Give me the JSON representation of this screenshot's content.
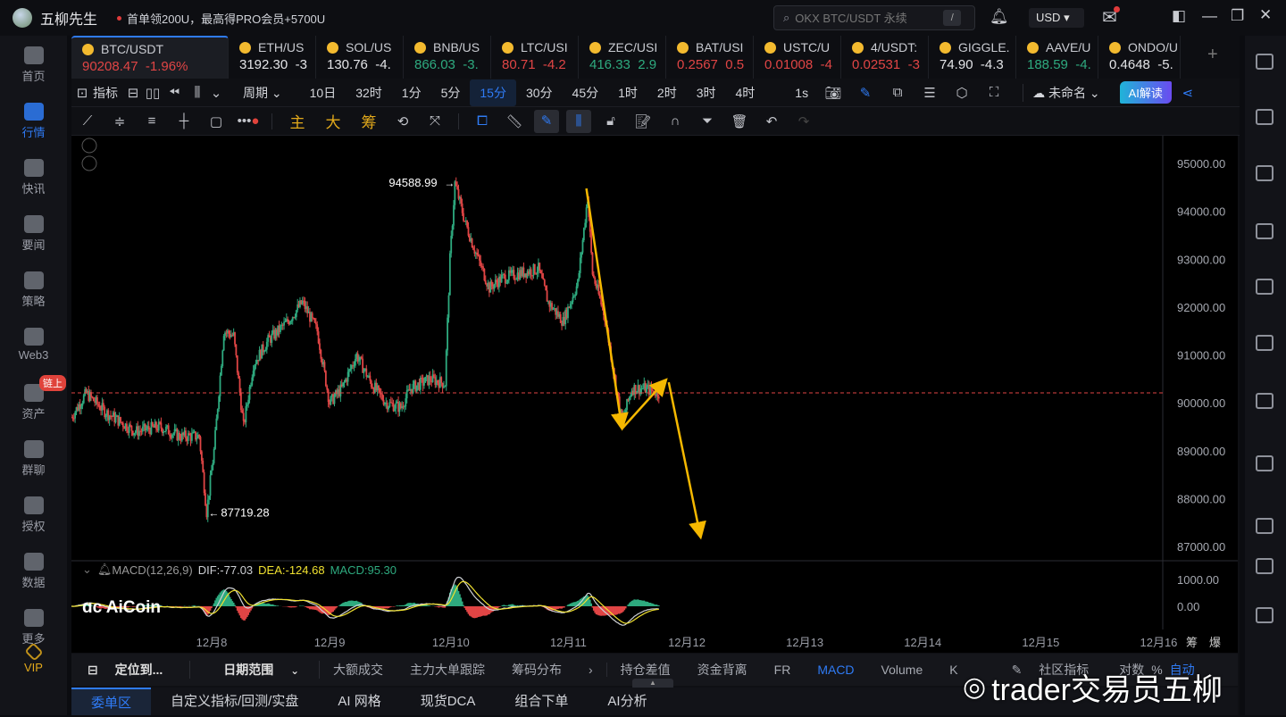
{
  "app": {
    "name": "五柳先生",
    "promo": "首单领200U，最高得PRO会员+5700U",
    "search_placeholder": "OKX BTC/USDT 永续",
    "search_key": "/",
    "currency": "USD"
  },
  "sidebar": {
    "items": [
      {
        "label": "首页"
      },
      {
        "label": "行情",
        "active": true
      },
      {
        "label": "快讯"
      },
      {
        "label": "要闻"
      },
      {
        "label": "策略"
      },
      {
        "label": "Web3"
      },
      {
        "label": "资产",
        "badge": "链上"
      },
      {
        "label": "群聊"
      },
      {
        "label": "授权"
      },
      {
        "label": "数据"
      },
      {
        "label": "更多"
      },
      {
        "label": "VIP"
      }
    ]
  },
  "colors": {
    "up": "#2eaa7f",
    "down": "#e04545",
    "accent": "#2f7bf5",
    "annotation": "#f5b800",
    "dif": "#cfd1d6",
    "dea": "#f0e130"
  },
  "tickers": [
    {
      "symbol": "BTC/USDT",
      "price": "90208.47",
      "change": "-1.96%",
      "color": "down",
      "active": true
    },
    {
      "symbol": "ETH/US",
      "price": "3192.30",
      "change": "-3",
      "color": "neutral"
    },
    {
      "symbol": "SOL/US",
      "price": "130.76",
      "change": "-4.",
      "color": "neutral"
    },
    {
      "symbol": "BNB/US",
      "price": "866.03",
      "change": "-3.",
      "color": "up"
    },
    {
      "symbol": "LTC/USI",
      "price": "80.71",
      "change": "-4.2",
      "color": "down"
    },
    {
      "symbol": "ZEC/USI",
      "price": "416.33",
      "change": "2.9",
      "color": "up"
    },
    {
      "symbol": "BAT/USI",
      "price": "0.2567",
      "change": "0.5",
      "color": "down"
    },
    {
      "symbol": "USTC/U",
      "price": "0.01008",
      "change": "-4",
      "color": "down"
    },
    {
      "symbol": "4/USDT:",
      "price": "0.02531",
      "change": "-3",
      "color": "down"
    },
    {
      "symbol": "GIGGLE.",
      "price": "74.90",
      "change": "-4.3",
      "color": "neutral"
    },
    {
      "symbol": "AAVE/U",
      "price": "188.59",
      "change": "-4.",
      "color": "up"
    },
    {
      "symbol": "ONDO/U",
      "price": "0.4648",
      "change": "-5.",
      "color": "neutral"
    }
  ],
  "toolbar": {
    "indicators": "指标",
    "period": "周期",
    "periods": [
      "10日",
      "32时",
      "1分",
      "5分",
      "15分",
      "30分",
      "45分",
      "1时",
      "2时",
      "3时",
      "4时"
    ],
    "active_period": "15分",
    "seconds": "1s",
    "layout_name": "未命名",
    "ai_button": "AI解读",
    "main_labels": [
      "主",
      "大",
      "筹"
    ]
  },
  "chart_data": {
    "type": "candlestick",
    "symbol": "BTC/USDT",
    "interval": "15分",
    "xlim": [
      "12-06 19:00",
      "12-16 01:00"
    ],
    "ylim": [
      86720,
      95580
    ],
    "yticks": [
      95000,
      94000,
      93000,
      92000,
      91000,
      90000,
      89000,
      88000,
      87000
    ],
    "ytick_labels": [
      "95000.00",
      "94000.00",
      "93000.00",
      "92000.00",
      "91000.00",
      "90000.00",
      "89000.00",
      "88000.00",
      "87000.00"
    ],
    "xtick_labels": [
      "12月8",
      "12月9",
      "12月10",
      "12月11",
      "12月12",
      "12月13",
      "12月14",
      "12月15",
      "12月16"
    ],
    "xticks": [
      "12-08 00:00",
      "12-09 00:00",
      "12-10 00:00",
      "12-11 00:00",
      "12-12 00:00",
      "12-13 00:00",
      "12-14 00:00",
      "12-15 00:00",
      "12-16 00:00"
    ],
    "price_path": [
      [
        "12-06 19:00",
        89700
      ],
      [
        "12-06 22:00",
        90200
      ],
      [
        "12-07 02:00",
        89800
      ],
      [
        "12-07 08:00",
        89400
      ],
      [
        "12-07 13:00",
        89500
      ],
      [
        "12-07 17:00",
        89300
      ],
      [
        "12-07 21:00",
        89300
      ],
      [
        "12-07 22:30",
        87719.28
      ],
      [
        "12-08 00:00",
        89000
      ],
      [
        "12-08 02:00",
        91500
      ],
      [
        "12-08 04:00",
        91400
      ],
      [
        "12-08 06:00",
        89500
      ],
      [
        "12-08 08:00",
        90800
      ],
      [
        "12-08 11:00",
        91300
      ],
      [
        "12-08 15:00",
        91700
      ],
      [
        "12-08 18:00",
        92100
      ],
      [
        "12-08 21:00",
        91500
      ],
      [
        "12-08 23:30",
        90000
      ],
      [
        "12-09 02:00",
        90300
      ],
      [
        "12-09 05:00",
        91000
      ],
      [
        "12-09 08:00",
        90400
      ],
      [
        "12-09 11:00",
        90000
      ],
      [
        "12-09 14:00",
        89900
      ],
      [
        "12-09 16:00",
        90300
      ],
      [
        "12-09 20:00",
        90500
      ],
      [
        "12-09 23:00",
        90400
      ],
      [
        "12-10 00:00",
        93000
      ],
      [
        "12-10 01:00",
        94588.99
      ],
      [
        "12-10 03:00",
        93800
      ],
      [
        "12-10 05:00",
        93200
      ],
      [
        "12-10 08:00",
        92400
      ],
      [
        "12-10 10:30",
        92600
      ],
      [
        "12-10 14:00",
        92700
      ],
      [
        "12-10 18:00",
        92800
      ],
      [
        "12-10 20:00",
        92100
      ],
      [
        "12-10 23:00",
        91700
      ],
      [
        "12-11 02:00",
        92500
      ],
      [
        "12-11 04:00",
        94300
      ],
      [
        "12-11 05:00",
        92700
      ],
      [
        "12-11 07:30",
        91800
      ],
      [
        "12-11 10:00",
        90200
      ],
      [
        "12-11 11:00",
        89600
      ],
      [
        "12-11 13:00",
        90300
      ],
      [
        "12-11 15:30",
        90300
      ],
      [
        "12-11 18:30",
        90208.47
      ]
    ],
    "high_label": "94588.99",
    "low_label": "87719.28",
    "current_price": 90208.47,
    "annotations": [
      {
        "type": "arrow",
        "from": [
          "12-11 03:45",
          94478
        ],
        "to": [
          "12-11 11:00",
          89460
        ]
      },
      {
        "type": "arrow",
        "from": [
          "12-11 11:00",
          89460
        ],
        "to": [
          "12-11 20:00",
          90485
        ]
      },
      {
        "type": "arrow",
        "from": [
          "12-11 20:30",
          90430
        ],
        "to": [
          "12-12 03:00",
          87187
        ]
      }
    ],
    "macd": {
      "label": "MACD(12,26,9)",
      "dif": "DIF:-77.03",
      "dea": "DEA:-124.68",
      "macd": "MACD:95.30",
      "yticks": [
        1000,
        0
      ],
      "ytick_labels": [
        "1000.00",
        "0.00"
      ]
    },
    "right_labels": [
      "筹",
      "爆"
    ]
  },
  "watermark_logo": "AiCoin",
  "bottom_tools": {
    "locate": "定位到...",
    "date_range": "日期范围",
    "items": [
      "大额成交",
      "主力大单跟踪",
      "筹码分布"
    ],
    "indicators": [
      "持仓差值",
      "资金背离",
      "FR",
      "MACD",
      "Volume",
      "K"
    ],
    "active_indicator": "MACD",
    "community": "社区指标",
    "log": "对数",
    "percent": "%",
    "auto": "自动"
  },
  "bottom_tabs": {
    "items": [
      "委单区",
      "自定义指标/回测/实盘",
      "AI 网格",
      "现货DCA",
      "组合下单",
      "AI分析"
    ],
    "active": "委单区"
  },
  "overlay_watermark": "trader交易员五柳"
}
